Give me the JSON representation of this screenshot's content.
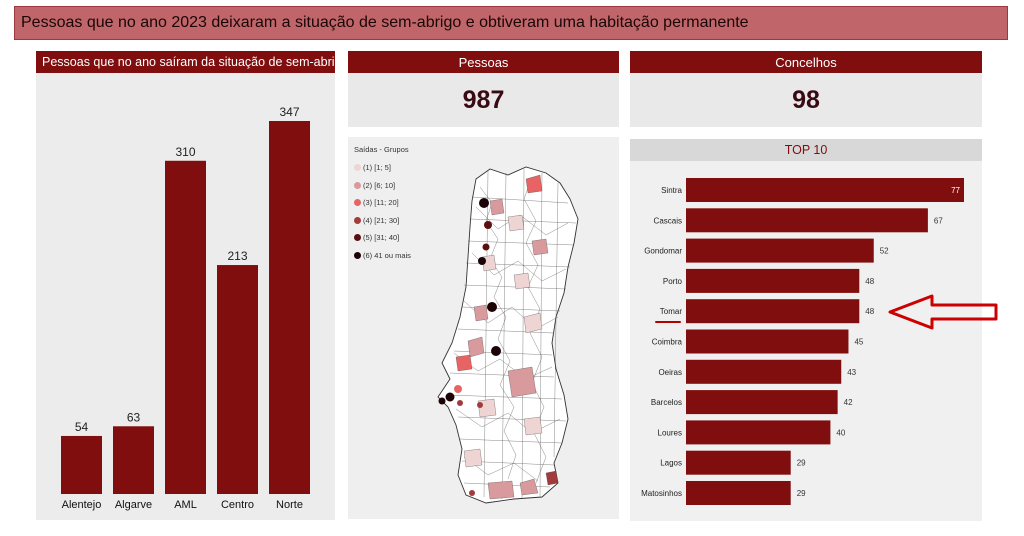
{
  "title": "Pessoas que no ano 2023 deixaram a situação de sem-abrigo e obtiveram uma habitação permanente",
  "bar_panel": {
    "header": "Pessoas que no ano saíram da situação de sem-abri..."
  },
  "kpis": {
    "pessoas": {
      "label": "Pessoas",
      "value": "987"
    },
    "concelhos": {
      "label": "Concelhos",
      "value": "98"
    }
  },
  "map": {
    "legend_title": "Saídas - Grupos",
    "legend": [
      {
        "label": "(1) [1; 5]",
        "color": "#efd4d4"
      },
      {
        "label": "(2) [6; 10]",
        "color": "#d89a9c"
      },
      {
        "label": "(3) [11; 20]",
        "color": "#e86464"
      },
      {
        "label": "(4) [21; 30]",
        "color": "#a33a3c"
      },
      {
        "label": "(5) [31; 40]",
        "color": "#5c0f12"
      },
      {
        "label": "(6) 41 ou mais",
        "color": "#1c0306"
      }
    ]
  },
  "top10": {
    "header": "TOP 10"
  },
  "colors": {
    "bar": "#800e0e",
    "header": "#800e0e",
    "title_bg": "#c0666a",
    "arrow": "#cc0000"
  },
  "chart_data": [
    {
      "type": "bar",
      "title": "Pessoas que no ano saíram da situação de sem-abri...",
      "categories": [
        "Alentejo",
        "Algarve",
        "AML",
        "Centro",
        "Norte"
      ],
      "values": [
        54,
        63,
        310,
        213,
        347
      ],
      "ylim": [
        0,
        347
      ]
    },
    {
      "type": "bar",
      "orientation": "horizontal",
      "title": "TOP 10",
      "categories": [
        "Sintra",
        "Cascais",
        "Gondomar",
        "Porto",
        "Tomar",
        "Coimbra",
        "Oeiras",
        "Barcelos",
        "Loures",
        "Lagos",
        "Matosinhos"
      ],
      "values": [
        77,
        67,
        52,
        48,
        48,
        45,
        43,
        42,
        40,
        29,
        29
      ],
      "xlim": [
        0,
        77
      ]
    }
  ]
}
